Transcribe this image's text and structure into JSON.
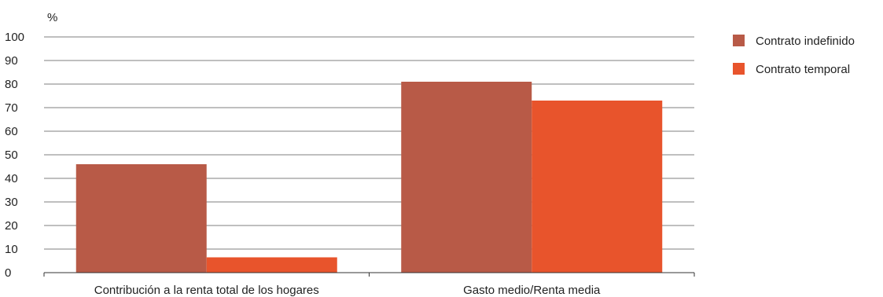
{
  "chart_data": {
    "type": "bar",
    "ylabel": "%",
    "categories": [
      "Contribución a la renta total de los hogares",
      "Gasto medio/Renta media"
    ],
    "series": [
      {
        "name": "Contrato indefinido",
        "color": "#b85a47",
        "values": [
          46,
          81
        ]
      },
      {
        "name": "Contrato temporal",
        "color": "#e8542c",
        "values": [
          6.5,
          73
        ]
      }
    ],
    "ylim": [
      0,
      100
    ],
    "yticks": [
      0,
      10,
      20,
      30,
      40,
      50,
      60,
      70,
      80,
      90,
      100
    ],
    "grid": true,
    "legend_position": "right"
  }
}
